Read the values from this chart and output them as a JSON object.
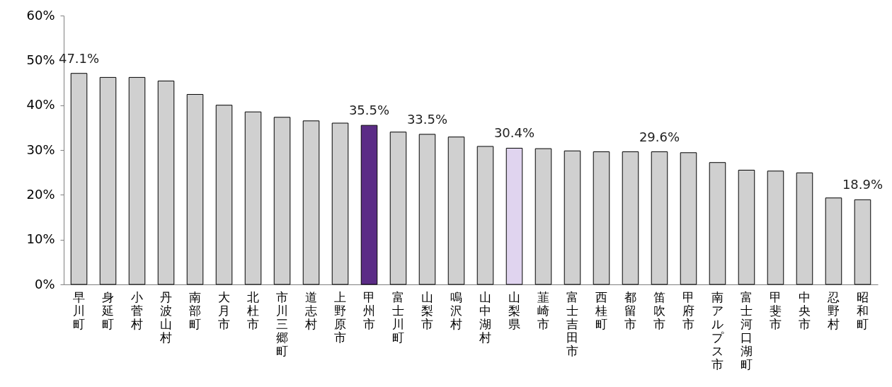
{
  "chart_data": {
    "type": "bar",
    "categories": [
      "早川町",
      "身延町",
      "小菅村",
      "丹波山村",
      "南部町",
      "大月市",
      "北杜市",
      "市川三郷町",
      "道志村",
      "上野原市",
      "甲州市",
      "富士川町",
      "山梨市",
      "鳴沢村",
      "山中湖村",
      "山梨県",
      "韮崎市",
      "富士吉田市",
      "西桂町",
      "都留市",
      "笛吹市",
      "甲府市",
      "南アルプス市",
      "富士河口湖町",
      "甲斐市",
      "中央市",
      "忍野村",
      "昭和町"
    ],
    "values": [
      47.1,
      46.2,
      46.2,
      45.4,
      42.4,
      40.0,
      38.5,
      37.3,
      36.5,
      36.0,
      35.5,
      34.0,
      33.5,
      32.9,
      30.8,
      30.4,
      30.3,
      29.8,
      29.6,
      29.6,
      29.6,
      29.4,
      27.2,
      25.5,
      25.3,
      24.9,
      19.3,
      18.9
    ],
    "colors": [
      "#d0d0d0",
      "#d0d0d0",
      "#d0d0d0",
      "#d0d0d0",
      "#d0d0d0",
      "#d0d0d0",
      "#d0d0d0",
      "#d0d0d0",
      "#d0d0d0",
      "#d0d0d0",
      "#5b2c86",
      "#d0d0d0",
      "#d0d0d0",
      "#d0d0d0",
      "#d0d0d0",
      "#e0d4ef",
      "#d0d0d0",
      "#d0d0d0",
      "#d0d0d0",
      "#d0d0d0",
      "#d0d0d0",
      "#d0d0d0",
      "#d0d0d0",
      "#d0d0d0",
      "#d0d0d0",
      "#d0d0d0",
      "#d0d0d0",
      "#d0d0d0"
    ],
    "value_labels": [
      "47.1%",
      null,
      null,
      null,
      null,
      null,
      null,
      null,
      null,
      null,
      "35.5%",
      null,
      "33.5%",
      null,
      null,
      "30.4%",
      null,
      null,
      null,
      null,
      "29.6%",
      null,
      null,
      null,
      null,
      null,
      null,
      "18.9%"
    ],
    "ylim": [
      0,
      60
    ],
    "yticks": [
      {
        "value": 0,
        "label": "0%"
      },
      {
        "value": 10,
        "label": "10%"
      },
      {
        "value": 20,
        "label": "20%"
      },
      {
        "value": 30,
        "label": "30%"
      },
      {
        "value": 40,
        "label": "40%"
      },
      {
        "value": 50,
        "label": "50%"
      },
      {
        "value": 60,
        "label": "60%"
      }
    ],
    "grid": false
  }
}
